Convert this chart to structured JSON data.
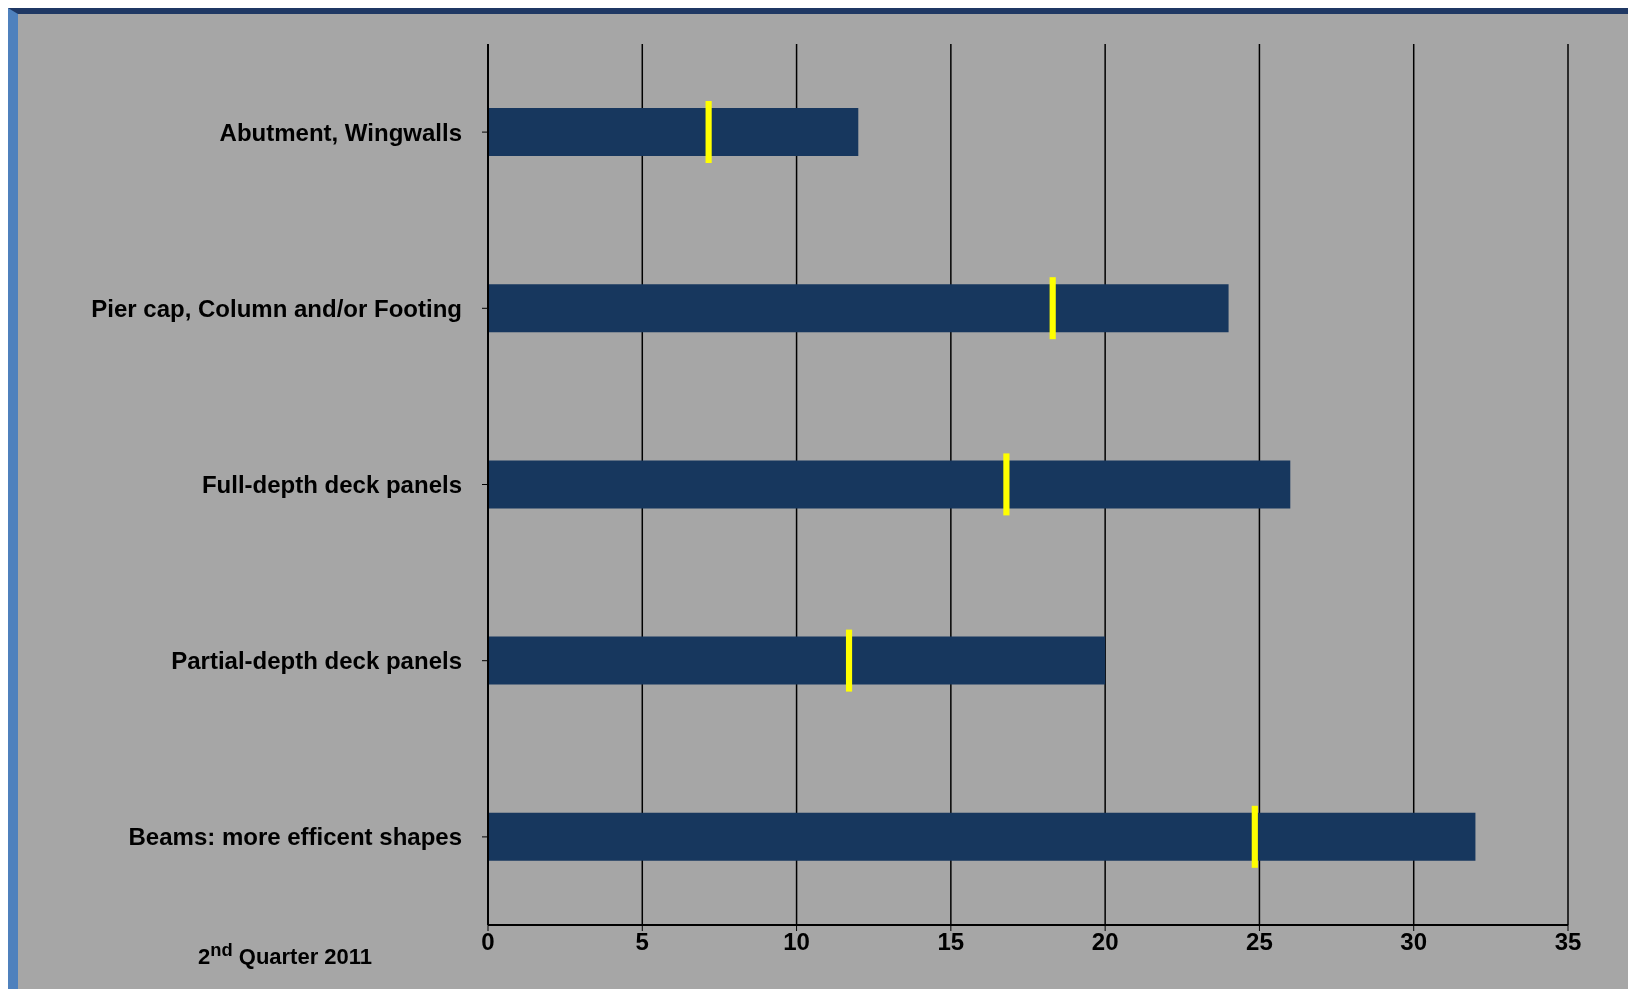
{
  "chart_data": {
    "type": "bar",
    "orientation": "horizontal",
    "categories": [
      "Abutment, Wingwalls",
      "Pier cap, Column and/or Footing",
      "Full-depth deck panels",
      "Partial-depth deck panels",
      "Beams: more efficent shapes"
    ],
    "series": [
      {
        "type": "bar",
        "color": "#17375e",
        "values": [
          12,
          24,
          26,
          20,
          32
        ]
      },
      {
        "type": "bar",
        "color": "#ffff00",
        "base": [
          7.05,
          18.2,
          16.7,
          11.6,
          24.75
        ],
        "values": [
          0.2,
          0.2,
          0.2,
          0.2,
          0.2
        ]
      }
    ],
    "xlim": [
      0,
      35
    ],
    "xticks": [
      0,
      5,
      10,
      15,
      20,
      25,
      30,
      35
    ],
    "grid": "x",
    "annotations": [
      "2$^{nd}$ Quarter 2011"
    ]
  }
}
